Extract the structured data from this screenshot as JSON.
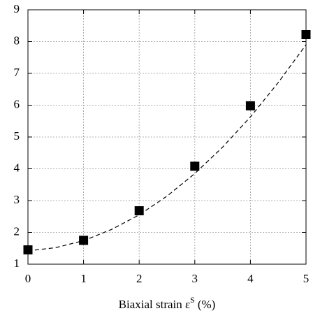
{
  "chart_data": {
    "type": "scatter",
    "xlabel": "Biaxial strain ε",
    "xlabel_sup": "S",
    "xlabel_end": "(%)",
    "xlim": [
      0,
      5
    ],
    "xticks": [
      0,
      1,
      2,
      3,
      4,
      5
    ],
    "ylim": [
      1,
      9
    ],
    "yticks": [
      1,
      2,
      3,
      4,
      5,
      6,
      7,
      8,
      9
    ],
    "grid": true,
    "series": [
      {
        "type": "scatter",
        "color": "#000000",
        "x": [
          0,
          1,
          2,
          3,
          4,
          5
        ],
        "values": [
          1.45,
          1.75,
          2.68,
          4.08,
          5.98,
          8.22
        ]
      },
      {
        "type": "line",
        "color": "#000000",
        "dashed": true,
        "x": [
          0,
          0.5,
          1,
          1.5,
          2,
          2.5,
          3,
          3.5,
          4,
          4.5,
          5
        ],
        "values": [
          1.42,
          1.52,
          1.74,
          2.09,
          2.55,
          3.14,
          3.85,
          4.68,
          5.63,
          6.71,
          7.9
        ]
      }
    ]
  }
}
